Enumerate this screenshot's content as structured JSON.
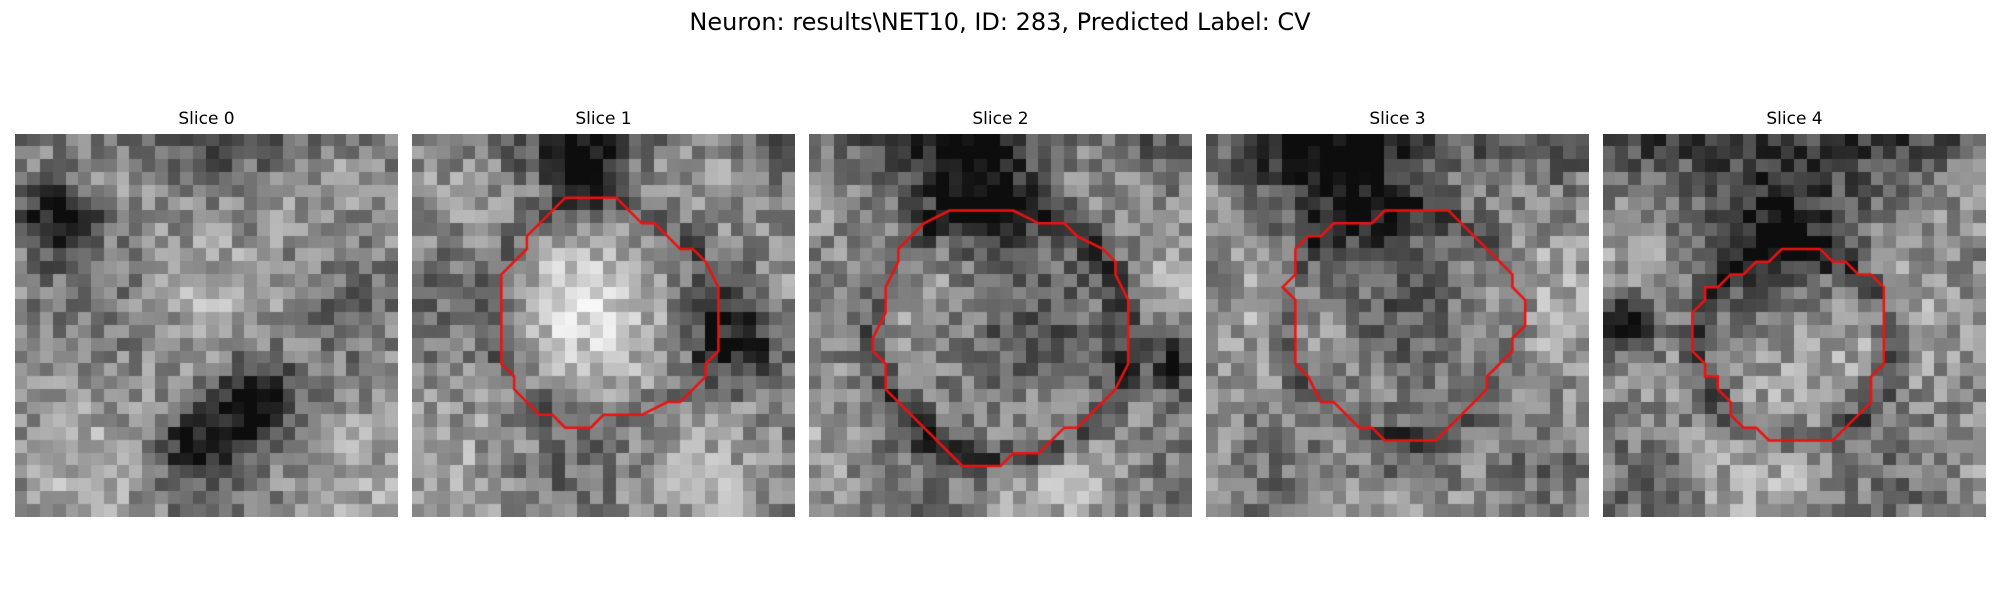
{
  "figure": {
    "title": "Neuron: results\\NET10, ID: 283, Predicted Label: CV",
    "contour_color": "#ee1111"
  },
  "panels": [
    {
      "title": "Slice 0",
      "has_contour": false,
      "seed": 11,
      "dark_blobs": [
        [
          0.12,
          0.22,
          0.07,
          0.55
        ],
        [
          0.62,
          0.7,
          0.08,
          0.6
        ],
        [
          0.47,
          0.82,
          0.06,
          0.4
        ]
      ],
      "ring": null
    },
    {
      "title": "Slice 1",
      "has_contour": true,
      "seed": 23,
      "dark_blobs": [
        [
          0.45,
          0.1,
          0.06,
          0.55
        ],
        [
          0.88,
          0.55,
          0.08,
          0.35
        ]
      ],
      "ring": [
        0.5,
        0.47,
        0.29,
        0.3,
        0.15
      ]
    },
    {
      "title": "Slice 2",
      "has_contour": true,
      "seed": 37,
      "dark_blobs": [
        [
          0.45,
          0.12,
          0.12,
          0.5
        ],
        [
          0.95,
          0.6,
          0.06,
          0.45
        ]
      ],
      "ring": [
        0.5,
        0.52,
        0.33,
        -0.2,
        0.3
      ]
    },
    {
      "title": "Slice 3",
      "has_contour": true,
      "seed": 51,
      "dark_blobs": [
        [
          0.4,
          0.1,
          0.15,
          0.5
        ],
        [
          0.55,
          0.85,
          0.08,
          0.3
        ]
      ],
      "ring": [
        0.51,
        0.49,
        0.3,
        -0.1,
        0.2
      ]
    },
    {
      "title": "Slice 4",
      "has_contour": true,
      "seed": 67,
      "dark_blobs": [
        [
          0.07,
          0.5,
          0.06,
          0.6
        ],
        [
          0.45,
          0.18,
          0.15,
          0.45
        ]
      ],
      "ring": [
        0.5,
        0.55,
        0.25,
        0.2,
        0.25
      ]
    }
  ]
}
